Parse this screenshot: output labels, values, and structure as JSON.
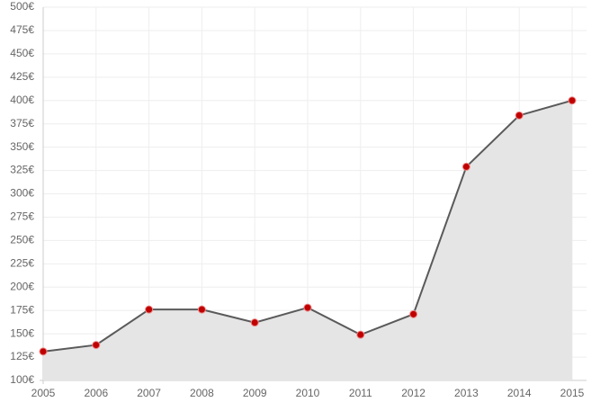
{
  "chart_data": {
    "type": "area",
    "categories": [
      "2005",
      "2006",
      "2007",
      "2008",
      "2009",
      "2010",
      "2011",
      "2012",
      "2013",
      "2014",
      "2015"
    ],
    "series": [
      {
        "color": "#5a5a5a",
        "fill": "#e5e5e5",
        "marker_color": "#c00000",
        "values": [
          131,
          138,
          176,
          176,
          162,
          178,
          149,
          171,
          329,
          384,
          400
        ]
      }
    ],
    "ylim": [
      100,
      500
    ],
    "yticks": [
      {
        "value": 100,
        "label": "100€"
      },
      {
        "value": 125,
        "label": "125€"
      },
      {
        "value": 150,
        "label": "150€"
      },
      {
        "value": 175,
        "label": "175€"
      },
      {
        "value": 200,
        "label": "200€"
      },
      {
        "value": 225,
        "label": "225€"
      },
      {
        "value": 250,
        "label": "250€"
      },
      {
        "value": 275,
        "label": "275€"
      },
      {
        "value": 300,
        "label": "300€"
      },
      {
        "value": 325,
        "label": "325€"
      },
      {
        "value": 350,
        "label": "350€"
      },
      {
        "value": 375,
        "label": "375€"
      },
      {
        "value": 400,
        "label": "400€"
      },
      {
        "value": 425,
        "label": "425€"
      },
      {
        "value": 450,
        "label": "450€"
      },
      {
        "value": 475,
        "label": "475€"
      },
      {
        "value": 500,
        "label": "500€"
      }
    ],
    "grid": true
  }
}
